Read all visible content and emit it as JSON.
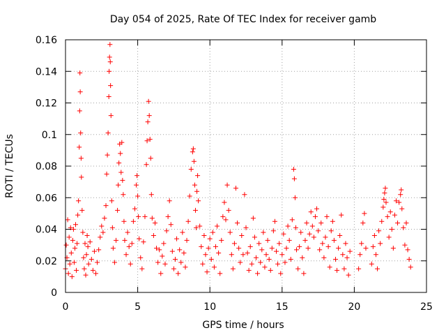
{
  "chart_data": {
    "type": "scatter",
    "title": "Day 054 of 2025, Rate Of TEC Index for receiver gamb",
    "xlabel": "GPS time / hours",
    "ylabel": "ROTI / TECUs",
    "xlim": [
      0,
      25
    ],
    "ylim": [
      0,
      0.16
    ],
    "xticks": [
      0,
      5,
      10,
      15,
      20,
      25
    ],
    "xtick_labels": [
      "0",
      "5",
      "10",
      "15",
      "20",
      "25"
    ],
    "yticks": [
      0,
      0.02,
      0.04,
      0.06,
      0.08,
      0.1,
      0.12,
      0.14,
      0.16
    ],
    "ytick_labels": [
      "0",
      "0.02",
      "0.04",
      "0.06",
      "0.08",
      "0.1",
      "0.12",
      "0.14",
      "0.16"
    ],
    "grid": true,
    "marker": "+",
    "color": "#ff0000",
    "series": [
      {
        "name": "ROTI",
        "points": [
          [
            0.0,
            0.015
          ],
          [
            0.05,
            0.03
          ],
          [
            0.1,
            0.022
          ],
          [
            0.15,
            0.046
          ],
          [
            0.2,
            0.012
          ],
          [
            0.25,
            0.035
          ],
          [
            0.3,
            0.018
          ],
          [
            0.35,
            0.041
          ],
          [
            0.4,
            0.025
          ],
          [
            0.45,
            0.01
          ],
          [
            0.5,
            0.033
          ],
          [
            0.55,
            0.04
          ],
          [
            0.6,
            0.019
          ],
          [
            0.65,
            0.028
          ],
          [
            0.7,
            0.043
          ],
          [
            0.75,
            0.014
          ],
          [
            0.8,
            0.031
          ],
          [
            0.85,
            0.049
          ],
          [
            0.9,
            0.058
          ],
          [
            0.95,
            0.092
          ],
          [
            0.98,
            0.115
          ],
          [
            1.0,
            0.139
          ],
          [
            1.02,
            0.127
          ],
          [
            1.05,
            0.101
          ],
          [
            1.08,
            0.085
          ],
          [
            1.1,
            0.073
          ],
          [
            1.15,
            0.052
          ],
          [
            1.2,
            0.038
          ],
          [
            1.25,
            0.022
          ],
          [
            1.3,
            0.015
          ],
          [
            1.35,
            0.031
          ],
          [
            1.4,
            0.011
          ],
          [
            1.45,
            0.024
          ],
          [
            1.5,
            0.036
          ],
          [
            1.55,
            0.029
          ],
          [
            1.6,
            0.018
          ],
          [
            1.7,
            0.032
          ],
          [
            1.8,
            0.021
          ],
          [
            1.9,
            0.014
          ],
          [
            2.0,
            0.026
          ],
          [
            2.1,
            0.012
          ],
          [
            2.2,
            0.019
          ],
          [
            2.3,
            0.027
          ],
          [
            2.4,
            0.035
          ],
          [
            2.5,
            0.042
          ],
          [
            2.6,
            0.038
          ],
          [
            2.7,
            0.047
          ],
          [
            2.8,
            0.055
          ],
          [
            2.85,
            0.075
          ],
          [
            2.9,
            0.087
          ],
          [
            2.95,
            0.101
          ],
          [
            3.0,
            0.124
          ],
          [
            3.02,
            0.14
          ],
          [
            3.05,
            0.149
          ],
          [
            3.08,
            0.157
          ],
          [
            3.1,
            0.146
          ],
          [
            3.12,
            0.131
          ],
          [
            3.15,
            0.112
          ],
          [
            3.2,
            0.058
          ],
          [
            3.25,
            0.041
          ],
          [
            3.3,
            0.028
          ],
          [
            3.4,
            0.019
          ],
          [
            3.5,
            0.033
          ],
          [
            3.6,
            0.052
          ],
          [
            3.65,
            0.068
          ],
          [
            3.7,
            0.082
          ],
          [
            3.75,
            0.094
          ],
          [
            3.8,
            0.088
          ],
          [
            3.85,
            0.076
          ],
          [
            3.9,
            0.095
          ],
          [
            3.95,
            0.071
          ],
          [
            4.0,
            0.062
          ],
          [
            4.05,
            0.045
          ],
          [
            4.1,
            0.033
          ],
          [
            4.2,
            0.024
          ],
          [
            4.3,
            0.038
          ],
          [
            4.4,
            0.029
          ],
          [
            4.5,
            0.018
          ],
          [
            4.6,
            0.031
          ],
          [
            4.7,
            0.045
          ],
          [
            4.8,
            0.053
          ],
          [
            4.9,
            0.068
          ],
          [
            4.95,
            0.074
          ],
          [
            5.0,
            0.061
          ],
          [
            5.05,
            0.048
          ],
          [
            5.1,
            0.034
          ],
          [
            5.2,
            0.022
          ],
          [
            5.3,
            0.015
          ],
          [
            5.4,
            0.032
          ],
          [
            5.5,
            0.048
          ],
          [
            5.6,
            0.081
          ],
          [
            5.65,
            0.096
          ],
          [
            5.7,
            0.108
          ],
          [
            5.75,
            0.121
          ],
          [
            5.8,
            0.112
          ],
          [
            5.85,
            0.097
          ],
          [
            5.9,
            0.085
          ],
          [
            5.95,
            0.062
          ],
          [
            6.0,
            0.047
          ],
          [
            6.1,
            0.036
          ],
          [
            6.2,
            0.044
          ],
          [
            6.3,
            0.028
          ],
          [
            6.4,
            0.019
          ],
          [
            6.5,
            0.027
          ],
          [
            6.6,
            0.012
          ],
          [
            6.7,
            0.023
          ],
          [
            6.8,
            0.031
          ],
          [
            6.9,
            0.018
          ],
          [
            7.0,
            0.039
          ],
          [
            7.1,
            0.048
          ],
          [
            7.2,
            0.058
          ],
          [
            7.3,
            0.043
          ],
          [
            7.4,
            0.026
          ],
          [
            7.5,
            0.015
          ],
          [
            7.6,
            0.021
          ],
          [
            7.7,
            0.034
          ],
          [
            7.8,
            0.012
          ],
          [
            7.9,
            0.027
          ],
          [
            8.0,
            0.019
          ],
          [
            8.1,
            0.038
          ],
          [
            8.2,
            0.025
          ],
          [
            8.3,
            0.016
          ],
          [
            8.4,
            0.033
          ],
          [
            8.5,
            0.045
          ],
          [
            8.6,
            0.061
          ],
          [
            8.7,
            0.078
          ],
          [
            8.8,
            0.089
          ],
          [
            8.85,
            0.091
          ],
          [
            8.9,
            0.083
          ],
          [
            8.95,
            0.068
          ],
          [
            9.0,
            0.052
          ],
          [
            9.05,
            0.041
          ],
          [
            9.1,
            0.064
          ],
          [
            9.15,
            0.074
          ],
          [
            9.2,
            0.058
          ],
          [
            9.3,
            0.042
          ],
          [
            9.4,
            0.029
          ],
          [
            9.5,
            0.018
          ],
          [
            9.6,
            0.036
          ],
          [
            9.7,
            0.024
          ],
          [
            9.8,
            0.013
          ],
          [
            9.9,
            0.028
          ],
          [
            10.0,
            0.034
          ],
          [
            10.1,
            0.021
          ],
          [
            10.2,
            0.038
          ],
          [
            10.3,
            0.016
          ],
          [
            10.4,
            0.029
          ],
          [
            10.5,
            0.042
          ],
          [
            10.6,
            0.025
          ],
          [
            10.7,
            0.012
          ],
          [
            10.8,
            0.033
          ],
          [
            10.9,
            0.048
          ],
          [
            11.0,
            0.057
          ],
          [
            11.1,
            0.046
          ],
          [
            11.2,
            0.068
          ],
          [
            11.3,
            0.052
          ],
          [
            11.4,
            0.038
          ],
          [
            11.5,
            0.024
          ],
          [
            11.6,
            0.015
          ],
          [
            11.7,
            0.031
          ],
          [
            11.8,
            0.066
          ],
          [
            11.9,
            0.044
          ],
          [
            12.0,
            0.028
          ],
          [
            12.1,
            0.019
          ],
          [
            12.2,
            0.036
          ],
          [
            12.3,
            0.024
          ],
          [
            12.4,
            0.062
          ],
          [
            12.5,
            0.041
          ],
          [
            12.6,
            0.025
          ],
          [
            12.7,
            0.014
          ],
          [
            12.8,
            0.029
          ],
          [
            12.9,
            0.018
          ],
          [
            13.0,
            0.047
          ],
          [
            13.1,
            0.035
          ],
          [
            13.2,
            0.022
          ],
          [
            13.3,
            0.012
          ],
          [
            13.4,
            0.031
          ],
          [
            13.5,
            0.019
          ],
          [
            13.6,
            0.027
          ],
          [
            13.7,
            0.038
          ],
          [
            13.8,
            0.016
          ],
          [
            13.9,
            0.024
          ],
          [
            14.0,
            0.033
          ],
          [
            14.1,
            0.021
          ],
          [
            14.2,
            0.014
          ],
          [
            14.3,
            0.028
          ],
          [
            14.4,
            0.039
          ],
          [
            14.5,
            0.045
          ],
          [
            14.6,
            0.026
          ],
          [
            14.7,
            0.018
          ],
          [
            14.8,
            0.031
          ],
          [
            14.9,
            0.012
          ],
          [
            15.0,
            0.024
          ],
          [
            15.1,
            0.037
          ],
          [
            15.2,
            0.019
          ],
          [
            15.3,
            0.028
          ],
          [
            15.4,
            0.042
          ],
          [
            15.5,
            0.033
          ],
          [
            15.6,
            0.021
          ],
          [
            15.7,
            0.046
          ],
          [
            15.8,
            0.078
          ],
          [
            15.85,
            0.072
          ],
          [
            15.9,
            0.06
          ],
          [
            15.95,
            0.041
          ],
          [
            16.0,
            0.027
          ],
          [
            16.1,
            0.015
          ],
          [
            16.2,
            0.029
          ],
          [
            16.3,
            0.038
          ],
          [
            16.4,
            0.022
          ],
          [
            16.5,
            0.012
          ],
          [
            16.6,
            0.033
          ],
          [
            16.7,
            0.044
          ],
          [
            16.8,
            0.028
          ],
          [
            16.9,
            0.037
          ],
          [
            17.0,
            0.051
          ],
          [
            17.1,
            0.042
          ],
          [
            17.2,
            0.035
          ],
          [
            17.3,
            0.048
          ],
          [
            17.4,
            0.053
          ],
          [
            17.5,
            0.039
          ],
          [
            17.6,
            0.027
          ],
          [
            17.7,
            0.044
          ],
          [
            17.8,
            0.031
          ],
          [
            17.9,
            0.022
          ],
          [
            18.0,
            0.035
          ],
          [
            18.1,
            0.048
          ],
          [
            18.2,
            0.029
          ],
          [
            18.3,
            0.016
          ],
          [
            18.4,
            0.039
          ],
          [
            18.5,
            0.045
          ],
          [
            18.6,
            0.033
          ],
          [
            18.7,
            0.021
          ],
          [
            18.8,
            0.014
          ],
          [
            18.9,
            0.028
          ],
          [
            19.0,
            0.036
          ],
          [
            19.1,
            0.049
          ],
          [
            19.2,
            0.024
          ],
          [
            19.3,
            0.015
          ],
          [
            19.4,
            0.031
          ],
          [
            19.5,
            0.022
          ],
          [
            19.6,
            0.011
          ],
          [
            19.7,
            0.026
          ],
          [
            20.3,
            0.015
          ],
          [
            20.4,
            0.024
          ],
          [
            20.5,
            0.031
          ],
          [
            20.6,
            0.044
          ],
          [
            20.7,
            0.05
          ],
          [
            20.8,
            0.028
          ],
          [
            21.2,
            0.018
          ],
          [
            21.3,
            0.029
          ],
          [
            21.4,
            0.036
          ],
          [
            21.5,
            0.024
          ],
          [
            21.6,
            0.015
          ],
          [
            21.7,
            0.039
          ],
          [
            21.8,
            0.031
          ],
          [
            21.9,
            0.045
          ],
          [
            22.0,
            0.054
          ],
          [
            22.05,
            0.059
          ],
          [
            22.1,
            0.063
          ],
          [
            22.15,
            0.066
          ],
          [
            22.2,
            0.057
          ],
          [
            22.3,
            0.048
          ],
          [
            22.4,
            0.035
          ],
          [
            22.5,
            0.051
          ],
          [
            22.6,
            0.04
          ],
          [
            22.7,
            0.028
          ],
          [
            22.8,
            0.049
          ],
          [
            22.9,
            0.058
          ],
          [
            23.0,
            0.044
          ],
          [
            23.1,
            0.057
          ],
          [
            23.2,
            0.062
          ],
          [
            23.25,
            0.065
          ],
          [
            23.3,
            0.053
          ],
          [
            23.4,
            0.041
          ],
          [
            23.5,
            0.03
          ],
          [
            23.6,
            0.044
          ],
          [
            23.7,
            0.027
          ],
          [
            23.8,
            0.021
          ],
          [
            23.9,
            0.016
          ]
        ]
      }
    ]
  }
}
